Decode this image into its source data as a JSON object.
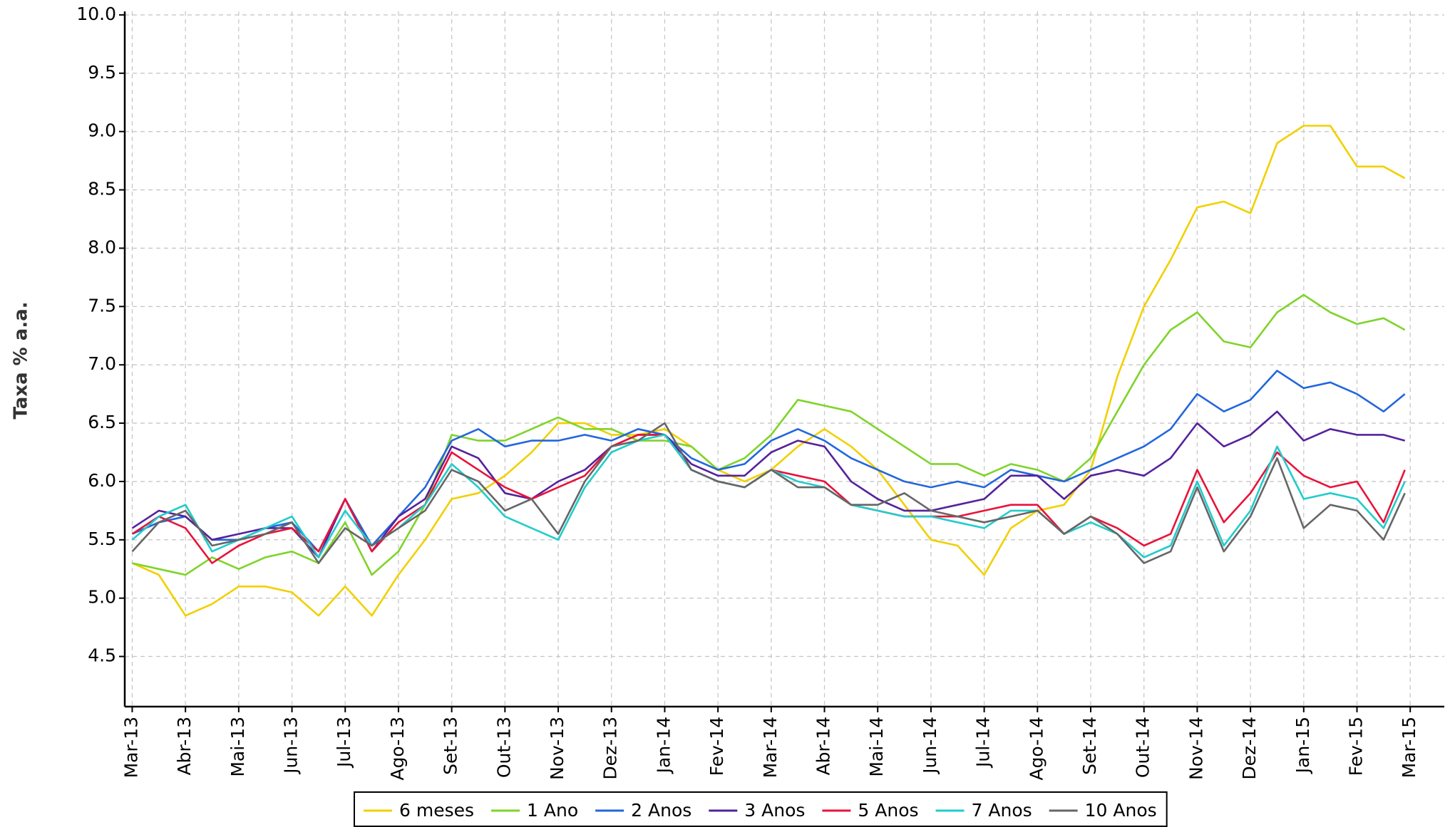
{
  "chart_data": {
    "type": "line",
    "y_label": "Taxa % a.a.",
    "x": [
      0,
      0.5,
      1,
      1.5,
      2,
      2.5,
      3,
      3.5,
      4,
      4.5,
      5,
      5.5,
      6,
      6.5,
      7,
      7.5,
      8,
      8.5,
      9,
      9.5,
      10,
      10.5,
      11,
      11.5,
      12,
      12.5,
      13,
      13.5,
      14,
      14.5,
      15,
      15.5,
      16,
      16.5,
      17,
      17.5,
      18,
      18.5,
      19,
      19.5,
      20,
      20.5,
      21,
      21.5,
      22,
      22.5,
      23,
      23.5,
      23.9
    ],
    "xlim": [
      -0.14,
      24.64
    ],
    "xticks": [
      {
        "value": 0,
        "label": "Mar-13"
      },
      {
        "value": 1,
        "label": "Abr-13"
      },
      {
        "value": 2,
        "label": "Mai-13"
      },
      {
        "value": 3,
        "label": "Jun-13"
      },
      {
        "value": 4,
        "label": "Jul-13"
      },
      {
        "value": 5,
        "label": "Ago-13"
      },
      {
        "value": 6,
        "label": "Set-13"
      },
      {
        "value": 7,
        "label": "Out-13"
      },
      {
        "value": 8,
        "label": "Nov-13"
      },
      {
        "value": 9,
        "label": "Dez-13"
      },
      {
        "value": 10,
        "label": "Jan-14"
      },
      {
        "value": 11,
        "label": "Fev-14"
      },
      {
        "value": 12,
        "label": "Mar-14"
      },
      {
        "value": 13,
        "label": "Abr-14"
      },
      {
        "value": 14,
        "label": "Mai-14"
      },
      {
        "value": 15,
        "label": "Jun-14"
      },
      {
        "value": 16,
        "label": "Jul-14"
      },
      {
        "value": 17,
        "label": "Ago-14"
      },
      {
        "value": 18,
        "label": "Set-14"
      },
      {
        "value": 19,
        "label": "Out-14"
      },
      {
        "value": 20,
        "label": "Nov-14"
      },
      {
        "value": 21,
        "label": "Dez-14"
      },
      {
        "value": 22,
        "label": "Jan-15"
      },
      {
        "value": 23,
        "label": "Fev-15"
      },
      {
        "value": 24,
        "label": "Mar-15"
      }
    ],
    "ylim": [
      4.07,
      10.03
    ],
    "yticks": [
      {
        "value": 10,
        "label": "10.0"
      },
      9.5,
      {
        "value": 9,
        "label": "9.0"
      },
      8.5,
      {
        "value": 8,
        "label": "8.0"
      },
      7.5,
      {
        "value": 7,
        "label": "7.0"
      },
      6.5,
      {
        "value": 6,
        "label": "6.0"
      },
      5.5,
      {
        "value": 5,
        "label": "5.0"
      },
      4.5
    ],
    "grid": true,
    "legend": "bottom",
    "series": [
      {
        "name": "6 meses",
        "color": "#f2d000",
        "values": [
          5.3,
          5.2,
          4.85,
          4.95,
          5.1,
          5.1,
          5.05,
          4.85,
          5.1,
          4.85,
          5.2,
          5.5,
          5.85,
          5.9,
          6.05,
          6.25,
          6.5,
          6.5,
          6.4,
          6.4,
          6.45,
          6.3,
          6.1,
          6.0,
          6.1,
          6.3,
          6.45,
          6.3,
          6.1,
          5.8,
          5.5,
          5.45,
          5.2,
          5.6,
          5.75,
          5.8,
          6.1,
          6.9,
          7.5,
          7.9,
          8.35,
          8.4,
          8.3,
          8.9,
          9.05,
          9.05,
          8.7,
          8.7,
          8.6
        ]
      },
      {
        "name": "1 Ano",
        "color": "#7fd42a",
        "values": [
          5.3,
          5.25,
          5.2,
          5.35,
          5.25,
          5.35,
          5.4,
          5.3,
          5.65,
          5.2,
          5.4,
          5.8,
          6.4,
          6.35,
          6.35,
          6.45,
          6.55,
          6.45,
          6.45,
          6.35,
          6.35,
          6.3,
          6.1,
          6.2,
          6.4,
          6.7,
          6.65,
          6.6,
          6.45,
          6.3,
          6.15,
          6.15,
          6.05,
          6.15,
          6.1,
          6.0,
          6.2,
          6.6,
          7.0,
          7.3,
          7.45,
          7.2,
          7.15,
          7.45,
          7.6,
          7.45,
          7.35,
          7.4,
          7.3
        ]
      },
      {
        "name": "2 Anos",
        "color": "#2266dd",
        "values": [
          5.55,
          5.65,
          5.7,
          5.5,
          5.5,
          5.6,
          5.65,
          5.4,
          5.85,
          5.45,
          5.7,
          5.95,
          6.35,
          6.45,
          6.3,
          6.35,
          6.35,
          6.4,
          6.35,
          6.45,
          6.4,
          6.2,
          6.1,
          6.15,
          6.35,
          6.45,
          6.35,
          6.2,
          6.1,
          6.0,
          5.95,
          6.0,
          5.95,
          6.1,
          6.05,
          6.0,
          6.1,
          6.2,
          6.3,
          6.45,
          6.75,
          6.6,
          6.7,
          6.95,
          6.8,
          6.85,
          6.75,
          6.6,
          6.75
        ]
      },
      {
        "name": "3 Anos",
        "color": "#55229b",
        "values": [
          5.6,
          5.75,
          5.7,
          5.5,
          5.55,
          5.6,
          5.6,
          5.35,
          5.85,
          5.4,
          5.7,
          5.85,
          6.3,
          6.2,
          5.9,
          5.85,
          6.0,
          6.1,
          6.3,
          6.4,
          6.4,
          6.15,
          6.05,
          6.05,
          6.25,
          6.35,
          6.3,
          6.0,
          5.85,
          5.75,
          5.75,
          5.8,
          5.85,
          6.05,
          6.05,
          5.85,
          6.05,
          6.1,
          6.05,
          6.2,
          6.5,
          6.3,
          6.4,
          6.6,
          6.35,
          6.45,
          6.4,
          6.4,
          6.35
        ]
      },
      {
        "name": "5 Anos",
        "color": "#e8133b",
        "values": [
          5.55,
          5.7,
          5.6,
          5.3,
          5.45,
          5.55,
          5.6,
          5.4,
          5.85,
          5.4,
          5.65,
          5.8,
          6.25,
          6.1,
          5.95,
          5.85,
          5.95,
          6.05,
          6.3,
          6.4,
          6.4,
          6.1,
          6.0,
          5.95,
          6.1,
          6.05,
          6.0,
          5.8,
          5.75,
          5.7,
          5.7,
          5.7,
          5.75,
          5.8,
          5.8,
          5.55,
          5.7,
          5.6,
          5.45,
          5.55,
          6.1,
          5.65,
          5.9,
          6.25,
          6.05,
          5.95,
          6.0,
          5.65,
          6.1
        ]
      },
      {
        "name": "7 Anos",
        "color": "#22cccc",
        "values": [
          5.5,
          5.7,
          5.8,
          5.4,
          5.5,
          5.6,
          5.7,
          5.35,
          5.75,
          5.45,
          5.6,
          5.8,
          6.15,
          5.95,
          5.7,
          5.6,
          5.5,
          5.95,
          6.25,
          6.35,
          6.4,
          6.1,
          6.0,
          5.95,
          6.1,
          6.0,
          5.95,
          5.8,
          5.75,
          5.7,
          5.7,
          5.65,
          5.6,
          5.75,
          5.75,
          5.55,
          5.65,
          5.55,
          5.35,
          5.45,
          6.0,
          5.45,
          5.75,
          6.3,
          5.85,
          5.9,
          5.85,
          5.6,
          6.0
        ]
      },
      {
        "name": "10 Anos",
        "color": "#666666",
        "values": [
          5.4,
          5.65,
          5.75,
          5.45,
          5.5,
          5.55,
          5.65,
          5.3,
          5.6,
          5.45,
          5.6,
          5.75,
          6.1,
          6.0,
          5.75,
          5.85,
          5.55,
          6.0,
          6.3,
          6.35,
          6.5,
          6.1,
          6.0,
          5.95,
          6.1,
          5.95,
          5.95,
          5.8,
          5.8,
          5.9,
          5.75,
          5.7,
          5.65,
          5.7,
          5.75,
          5.55,
          5.7,
          5.55,
          5.3,
          5.4,
          5.95,
          5.4,
          5.7,
          6.2,
          5.6,
          5.8,
          5.75,
          5.5,
          5.9
        ]
      }
    ]
  }
}
